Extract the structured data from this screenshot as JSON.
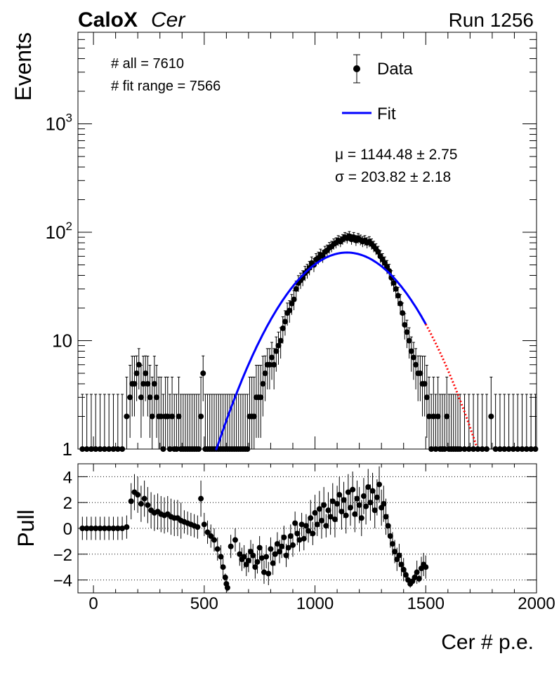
{
  "chart_data": {
    "type": "scatter",
    "header": {
      "experiment": "CaloX",
      "channel": "Cer",
      "run": "Run 1256"
    },
    "stats": {
      "all": "# all = 7610",
      "fit_range": "# fit range = 7566"
    },
    "fit_params": {
      "mu": "μ = 1144.48 ± 2.75",
      "sigma": "σ = 203.82 ± 2.18"
    },
    "legend": [
      {
        "name": "Data",
        "kind": "marker",
        "color": "#000000"
      },
      {
        "name": "Fit",
        "kind": "line",
        "color": "#0000ff"
      }
    ],
    "main_panel": {
      "ylabel": "Events",
      "yscale": "log",
      "ylim": [
        1,
        7000
      ],
      "yticks": [
        {
          "value": 1,
          "base": "1",
          "exp": ""
        },
        {
          "value": 10,
          "base": "10",
          "exp": ""
        },
        {
          "value": 100,
          "base": "10",
          "exp": "2"
        },
        {
          "value": 1000,
          "base": "10",
          "exp": "3"
        }
      ],
      "fit_curve": {
        "function": "gaussian",
        "amplitude": 65,
        "mu": 1144.48,
        "sigma": 203.82,
        "fit_range": [
          550,
          1500
        ],
        "extrapolation_range": [
          1500,
          1730
        ],
        "fit_color": "#0000ff",
        "extrapolation_color": "#ff0000"
      },
      "data_points": [
        [
          -50,
          1
        ],
        [
          -30,
          1
        ],
        [
          -10,
          1
        ],
        [
          10,
          1
        ],
        [
          30,
          1
        ],
        [
          50,
          1
        ],
        [
          70,
          1
        ],
        [
          90,
          1
        ],
        [
          110,
          1
        ],
        [
          130,
          1
        ],
        [
          150,
          2
        ],
        [
          165,
          3
        ],
        [
          175,
          4
        ],
        [
          185,
          4
        ],
        [
          195,
          5
        ],
        [
          205,
          6
        ],
        [
          215,
          3
        ],
        [
          225,
          4
        ],
        [
          235,
          5
        ],
        [
          245,
          4
        ],
        [
          255,
          3
        ],
        [
          265,
          2
        ],
        [
          275,
          4
        ],
        [
          285,
          3
        ],
        [
          295,
          2
        ],
        [
          305,
          2
        ],
        [
          315,
          1
        ],
        [
          325,
          2
        ],
        [
          335,
          2
        ],
        [
          345,
          1
        ],
        [
          355,
          2
        ],
        [
          365,
          1
        ],
        [
          375,
          1
        ],
        [
          385,
          2
        ],
        [
          395,
          1
        ],
        [
          405,
          1
        ],
        [
          415,
          1
        ],
        [
          425,
          1
        ],
        [
          435,
          1
        ],
        [
          445,
          1
        ],
        [
          455,
          1
        ],
        [
          465,
          1
        ],
        [
          475,
          1
        ],
        [
          485,
          2
        ],
        [
          495,
          5
        ],
        [
          505,
          1
        ],
        [
          515,
          1
        ],
        [
          525,
          1
        ],
        [
          535,
          1
        ],
        [
          545,
          1
        ],
        [
          555,
          1
        ],
        [
          565,
          1
        ],
        [
          575,
          1
        ],
        [
          585,
          1
        ],
        [
          595,
          1
        ],
        [
          605,
          1
        ],
        [
          615,
          1
        ],
        [
          625,
          1
        ],
        [
          635,
          1
        ],
        [
          645,
          1
        ],
        [
          655,
          1
        ],
        [
          665,
          1
        ],
        [
          675,
          1
        ],
        [
          685,
          1
        ],
        [
          695,
          1
        ],
        [
          705,
          2
        ],
        [
          715,
          2
        ],
        [
          725,
          2
        ],
        [
          735,
          3
        ],
        [
          745,
          3
        ],
        [
          755,
          3
        ],
        [
          765,
          4
        ],
        [
          775,
          5
        ],
        [
          785,
          6
        ],
        [
          795,
          6
        ],
        [
          805,
          7
        ],
        [
          815,
          6
        ],
        [
          825,
          8
        ],
        [
          835,
          9
        ],
        [
          845,
          10
        ],
        [
          855,
          13
        ],
        [
          865,
          15
        ],
        [
          875,
          18
        ],
        [
          885,
          19
        ],
        [
          895,
          22
        ],
        [
          905,
          24
        ],
        [
          915,
          30
        ],
        [
          925,
          34
        ],
        [
          935,
          36
        ],
        [
          945,
          38
        ],
        [
          955,
          42
        ],
        [
          965,
          44
        ],
        [
          975,
          47
        ],
        [
          985,
          52
        ],
        [
          995,
          50
        ],
        [
          1005,
          56
        ],
        [
          1015,
          58
        ],
        [
          1025,
          62
        ],
        [
          1035,
          60
        ],
        [
          1045,
          66
        ],
        [
          1055,
          68
        ],
        [
          1065,
          72
        ],
        [
          1075,
          74
        ],
        [
          1085,
          78
        ],
        [
          1095,
          80
        ],
        [
          1105,
          84
        ],
        [
          1115,
          82
        ],
        [
          1125,
          86
        ],
        [
          1135,
          90
        ],
        [
          1145,
          88
        ],
        [
          1155,
          92
        ],
        [
          1165,
          86
        ],
        [
          1175,
          90
        ],
        [
          1185,
          84
        ],
        [
          1195,
          88
        ],
        [
          1205,
          85
        ],
        [
          1215,
          82
        ],
        [
          1225,
          84
        ],
        [
          1235,
          80
        ],
        [
          1245,
          82
        ],
        [
          1255,
          78
        ],
        [
          1265,
          74
        ],
        [
          1275,
          70
        ],
        [
          1285,
          66
        ],
        [
          1295,
          60
        ],
        [
          1305,
          56
        ],
        [
          1315,
          52
        ],
        [
          1325,
          48
        ],
        [
          1335,
          44
        ],
        [
          1345,
          38
        ],
        [
          1355,
          34
        ],
        [
          1365,
          30
        ],
        [
          1375,
          26
        ],
        [
          1385,
          22
        ],
        [
          1395,
          18
        ],
        [
          1405,
          14
        ],
        [
          1415,
          12
        ],
        [
          1425,
          10
        ],
        [
          1435,
          8
        ],
        [
          1445,
          7
        ],
        [
          1455,
          6
        ],
        [
          1465,
          5
        ],
        [
          1475,
          5
        ],
        [
          1485,
          4
        ],
        [
          1495,
          4
        ],
        [
          1505,
          3
        ],
        [
          1515,
          2
        ],
        [
          1525,
          1
        ],
        [
          1535,
          2
        ],
        [
          1545,
          1
        ],
        [
          1555,
          2
        ],
        [
          1565,
          1
        ],
        [
          1575,
          1
        ],
        [
          1585,
          1
        ],
        [
          1595,
          2
        ],
        [
          1605,
          1
        ],
        [
          1615,
          1
        ],
        [
          1625,
          1
        ],
        [
          1635,
          1
        ],
        [
          1645,
          1
        ],
        [
          1655,
          1
        ],
        [
          1675,
          1
        ],
        [
          1695,
          1
        ],
        [
          1715,
          1
        ],
        [
          1735,
          1
        ],
        [
          1755,
          1
        ],
        [
          1775,
          1
        ],
        [
          1795,
          2
        ],
        [
          1815,
          1
        ],
        [
          1835,
          1
        ],
        [
          1855,
          1
        ],
        [
          1875,
          1
        ],
        [
          1895,
          1
        ],
        [
          1915,
          1
        ],
        [
          1935,
          1
        ],
        [
          1955,
          1
        ],
        [
          1975,
          1
        ],
        [
          1995,
          1
        ]
      ]
    },
    "pull_panel": {
      "ylabel": "Pull",
      "ylim": [
        -5,
        5
      ],
      "yticks": [
        4,
        2,
        0,
        -2,
        -4
      ],
      "gridlines": [
        4,
        2,
        0,
        -2,
        -4
      ],
      "points": [
        [
          -50,
          0
        ],
        [
          -30,
          0
        ],
        [
          -10,
          0
        ],
        [
          10,
          0
        ],
        [
          30,
          0
        ],
        [
          50,
          0
        ],
        [
          70,
          0
        ],
        [
          90,
          0
        ],
        [
          110,
          0
        ],
        [
          130,
          0
        ],
        [
          150,
          0.1
        ],
        [
          170,
          2.1
        ],
        [
          185,
          2.8
        ],
        [
          200,
          2.6
        ],
        [
          215,
          1.9
        ],
        [
          230,
          2.3
        ],
        [
          245,
          1.8
        ],
        [
          260,
          1.4
        ],
        [
          275,
          1.2
        ],
        [
          290,
          1.3
        ],
        [
          305,
          1.1
        ],
        [
          320,
          1.0
        ],
        [
          335,
          1.1
        ],
        [
          350,
          0.9
        ],
        [
          365,
          0.8
        ],
        [
          380,
          0.8
        ],
        [
          395,
          0.6
        ],
        [
          410,
          0.5
        ],
        [
          425,
          0.4
        ],
        [
          440,
          0.3
        ],
        [
          455,
          0.2
        ],
        [
          470,
          0.1
        ],
        [
          485,
          2.3
        ],
        [
          500,
          0.3
        ],
        [
          515,
          -0.3
        ],
        [
          530,
          -0.6
        ],
        [
          545,
          -0.9
        ],
        [
          560,
          -1.6
        ],
        [
          575,
          -2.2
        ],
        [
          585,
          -3.0
        ],
        [
          595,
          -3.8
        ],
        [
          600,
          -4.3
        ],
        [
          605,
          -4.6
        ],
        [
          620,
          -1.4
        ],
        [
          640,
          -0.9
        ],
        [
          660,
          -2.0
        ],
        [
          670,
          -2.4
        ],
        [
          680,
          -2.2
        ],
        [
          690,
          -2.8
        ],
        [
          700,
          -2.5
        ],
        [
          710,
          -1.8
        ],
        [
          720,
          -2.1
        ],
        [
          730,
          -3.0
        ],
        [
          740,
          -2.6
        ],
        [
          750,
          -1.5
        ],
        [
          760,
          -2.3
        ],
        [
          770,
          -3.4
        ],
        [
          780,
          -2.2
        ],
        [
          790,
          -3.5
        ],
        [
          800,
          -1.6
        ],
        [
          810,
          -2.7
        ],
        [
          820,
          -2.0
        ],
        [
          830,
          -1.2
        ],
        [
          840,
          -1.8
        ],
        [
          850,
          -1.4
        ],
        [
          860,
          -0.7
        ],
        [
          870,
          -2.1
        ],
        [
          880,
          -1.5
        ],
        [
          890,
          -0.6
        ],
        [
          900,
          -1.3
        ],
        [
          910,
          0.4
        ],
        [
          920,
          -0.4
        ],
        [
          930,
          -0.9
        ],
        [
          940,
          0.3
        ],
        [
          950,
          -0.8
        ],
        [
          960,
          0.2
        ],
        [
          970,
          -0.2
        ],
        [
          980,
          0.8
        ],
        [
          990,
          -0.4
        ],
        [
          1000,
          1.2
        ],
        [
          1010,
          0.3
        ],
        [
          1020,
          1.5
        ],
        [
          1030,
          0.6
        ],
        [
          1040,
          1.8
        ],
        [
          1050,
          0.2
        ],
        [
          1060,
          1.4
        ],
        [
          1070,
          0.9
        ],
        [
          1080,
          2.1
        ],
        [
          1090,
          0.7
        ],
        [
          1100,
          1.9
        ],
        [
          1110,
          2.6
        ],
        [
          1120,
          1.3
        ],
        [
          1130,
          2.2
        ],
        [
          1140,
          1.0
        ],
        [
          1150,
          2.8
        ],
        [
          1160,
          1.6
        ],
        [
          1170,
          3.0
        ],
        [
          1180,
          1.1
        ],
        [
          1190,
          2.3
        ],
        [
          1200,
          1.8
        ],
        [
          1210,
          0.8
        ],
        [
          1220,
          2.5
        ],
        [
          1230,
          1.7
        ],
        [
          1240,
          3.2
        ],
        [
          1250,
          2.0
        ],
        [
          1260,
          2.9
        ],
        [
          1270,
          1.4
        ],
        [
          1280,
          2.4
        ],
        [
          1290,
          3.4
        ],
        [
          1300,
          1.6
        ],
        [
          1310,
          1.9
        ],
        [
          1320,
          0.9
        ],
        [
          1330,
          0.2
        ],
        [
          1340,
          -0.6
        ],
        [
          1350,
          -1.2
        ],
        [
          1360,
          -1.8
        ],
        [
          1370,
          -2.4
        ],
        [
          1380,
          -2.1
        ],
        [
          1390,
          -2.8
        ],
        [
          1400,
          -3.2
        ],
        [
          1410,
          -3.6
        ],
        [
          1420,
          -4.0
        ],
        [
          1430,
          -4.3
        ],
        [
          1440,
          -4.1
        ],
        [
          1450,
          -3.8
        ],
        [
          1460,
          -3.4
        ],
        [
          1470,
          -3.9
        ],
        [
          1480,
          -3.1
        ],
        [
          1490,
          -2.8
        ],
        [
          1500,
          -3.0
        ]
      ]
    },
    "x_axis": {
      "label": "Cer # p.e.",
      "range": [
        -70,
        2000
      ],
      "ticks": [
        0,
        500,
        1000,
        1500,
        2000
      ]
    }
  }
}
